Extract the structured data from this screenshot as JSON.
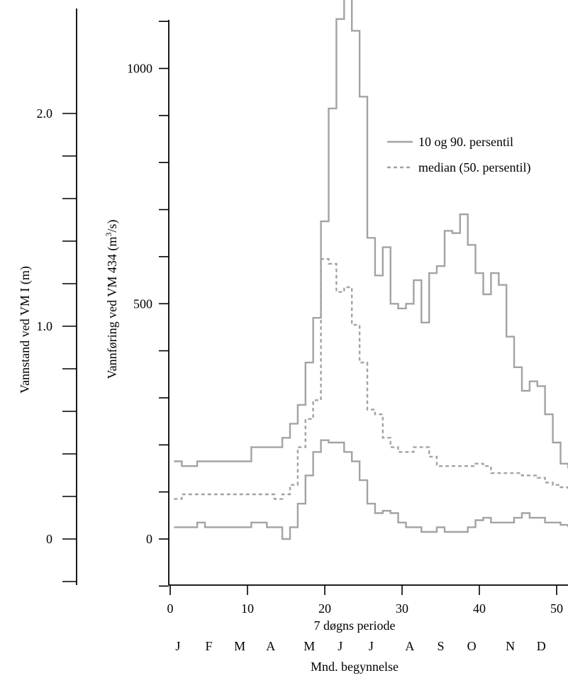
{
  "chart_data": {
    "type": "line",
    "step": true,
    "xlabel": "7 døgns periode",
    "month_axis_label": "Mnd. begynnelse",
    "ylabel": "Vannføring ved VM 434 (m³/s)",
    "ylabel_main": "Vannføring ved VM 434 (m",
    "ylabel_sup": "3",
    "ylabel_end": "/s)",
    "secondary_ylabel": "Vannstand ved VM I (m)",
    "xlim": [
      0,
      52
    ],
    "ylim": [
      -100,
      1200
    ],
    "secondary_ylim": [
      -0.3,
      2.5
    ],
    "x_ticks": [
      "0",
      "10",
      "20",
      "30",
      "40",
      "50"
    ],
    "y_ticks": [
      "0",
      "500",
      "1000"
    ],
    "secondary_y_ticks": [
      "0",
      "1.0",
      "2.0"
    ],
    "months": [
      "J",
      "F",
      "M",
      "A",
      "M",
      "J",
      "J",
      "A",
      "S",
      "O",
      "N",
      "D"
    ],
    "month_positions": [
      1,
      5,
      9,
      13,
      18,
      22,
      26,
      31,
      35,
      39,
      44,
      48
    ],
    "legend": {
      "position": "top-right",
      "entries": [
        {
          "label": "10 og 90. persentil",
          "style": "solid"
        },
        {
          "label": "median (50. persentil)",
          "style": "dashed"
        }
      ]
    },
    "colors": {
      "solid": "#a3a3a3",
      "dashed": "#a3a3a3"
    },
    "x": [
      1,
      2,
      3,
      4,
      5,
      6,
      7,
      8,
      9,
      10,
      11,
      12,
      13,
      14,
      15,
      16,
      17,
      18,
      19,
      20,
      21,
      22,
      23,
      24,
      25,
      26,
      27,
      28,
      29,
      30,
      31,
      32,
      33,
      34,
      35,
      36,
      37,
      38,
      39,
      40,
      41,
      42,
      43,
      44,
      45,
      46,
      47,
      48,
      49,
      50,
      51,
      52
    ],
    "series": [
      {
        "name": "90. persentil",
        "style": "solid",
        "values": [
          165,
          155,
          155,
          165,
          165,
          165,
          165,
          165,
          165,
          165,
          195,
          195,
          195,
          195,
          215,
          245,
          285,
          375,
          470,
          675,
          915,
          1105,
          1235,
          1080,
          940,
          640,
          560,
          620,
          500,
          490,
          500,
          550,
          460,
          565,
          580,
          655,
          650,
          690,
          625,
          565,
          520,
          565,
          540,
          430,
          365,
          315,
          335,
          325,
          265,
          205,
          160,
          150
        ]
      },
      {
        "name": "median (50. persentil)",
        "style": "dashed",
        "values": [
          85,
          95,
          95,
          95,
          95,
          95,
          95,
          95,
          95,
          95,
          95,
          95,
          95,
          85,
          95,
          115,
          195,
          255,
          295,
          595,
          585,
          525,
          535,
          455,
          375,
          275,
          265,
          215,
          195,
          185,
          185,
          195,
          195,
          175,
          155,
          155,
          155,
          155,
          155,
          160,
          155,
          140,
          140,
          140,
          140,
          135,
          135,
          130,
          120,
          115,
          110,
          100
        ]
      },
      {
        "name": "10. persentil",
        "style": "solid",
        "values": [
          25,
          25,
          25,
          35,
          25,
          25,
          25,
          25,
          25,
          25,
          35,
          35,
          25,
          25,
          0,
          25,
          75,
          135,
          185,
          210,
          205,
          205,
          185,
          165,
          125,
          75,
          55,
          60,
          55,
          35,
          25,
          25,
          15,
          15,
          25,
          15,
          15,
          15,
          25,
          40,
          45,
          35,
          35,
          35,
          45,
          55,
          45,
          45,
          35,
          35,
          30,
          25
        ]
      }
    ]
  }
}
